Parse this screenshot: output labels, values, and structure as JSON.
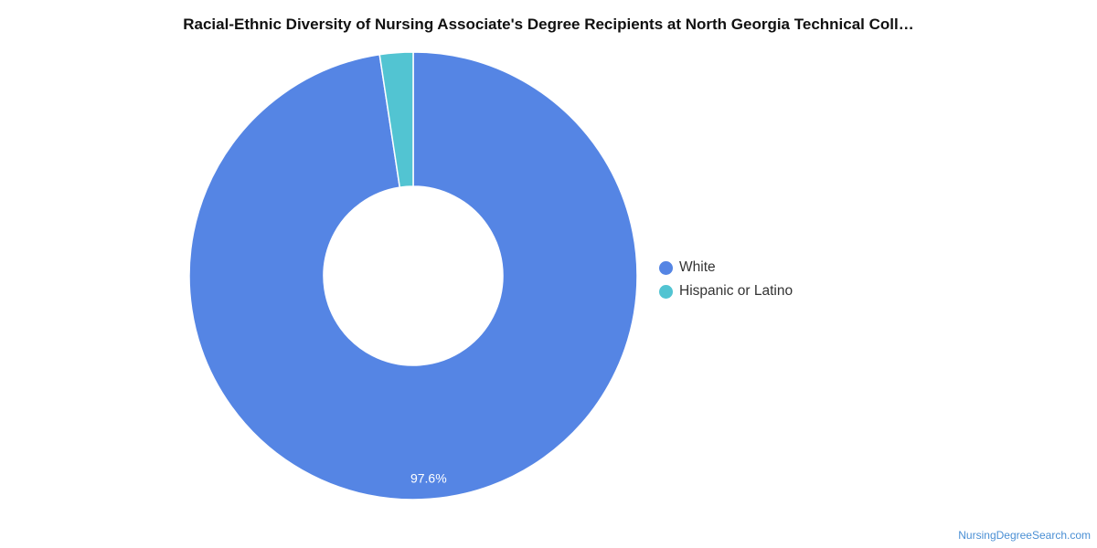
{
  "chart_data": {
    "type": "pie",
    "title": "Racial-Ethnic Diversity of Nursing Associate's Degree Recipients at North Georgia Technical Coll…",
    "slices": [
      {
        "label": "White",
        "value": 97.6,
        "display": "97.6%",
        "color": "#5585e4"
      },
      {
        "label": "Hispanic or Latino",
        "value": 2.4,
        "display": "",
        "color": "#52c4d2"
      }
    ],
    "donut": true,
    "legend_position": "right"
  },
  "source": "NursingDegreeSearch.com"
}
